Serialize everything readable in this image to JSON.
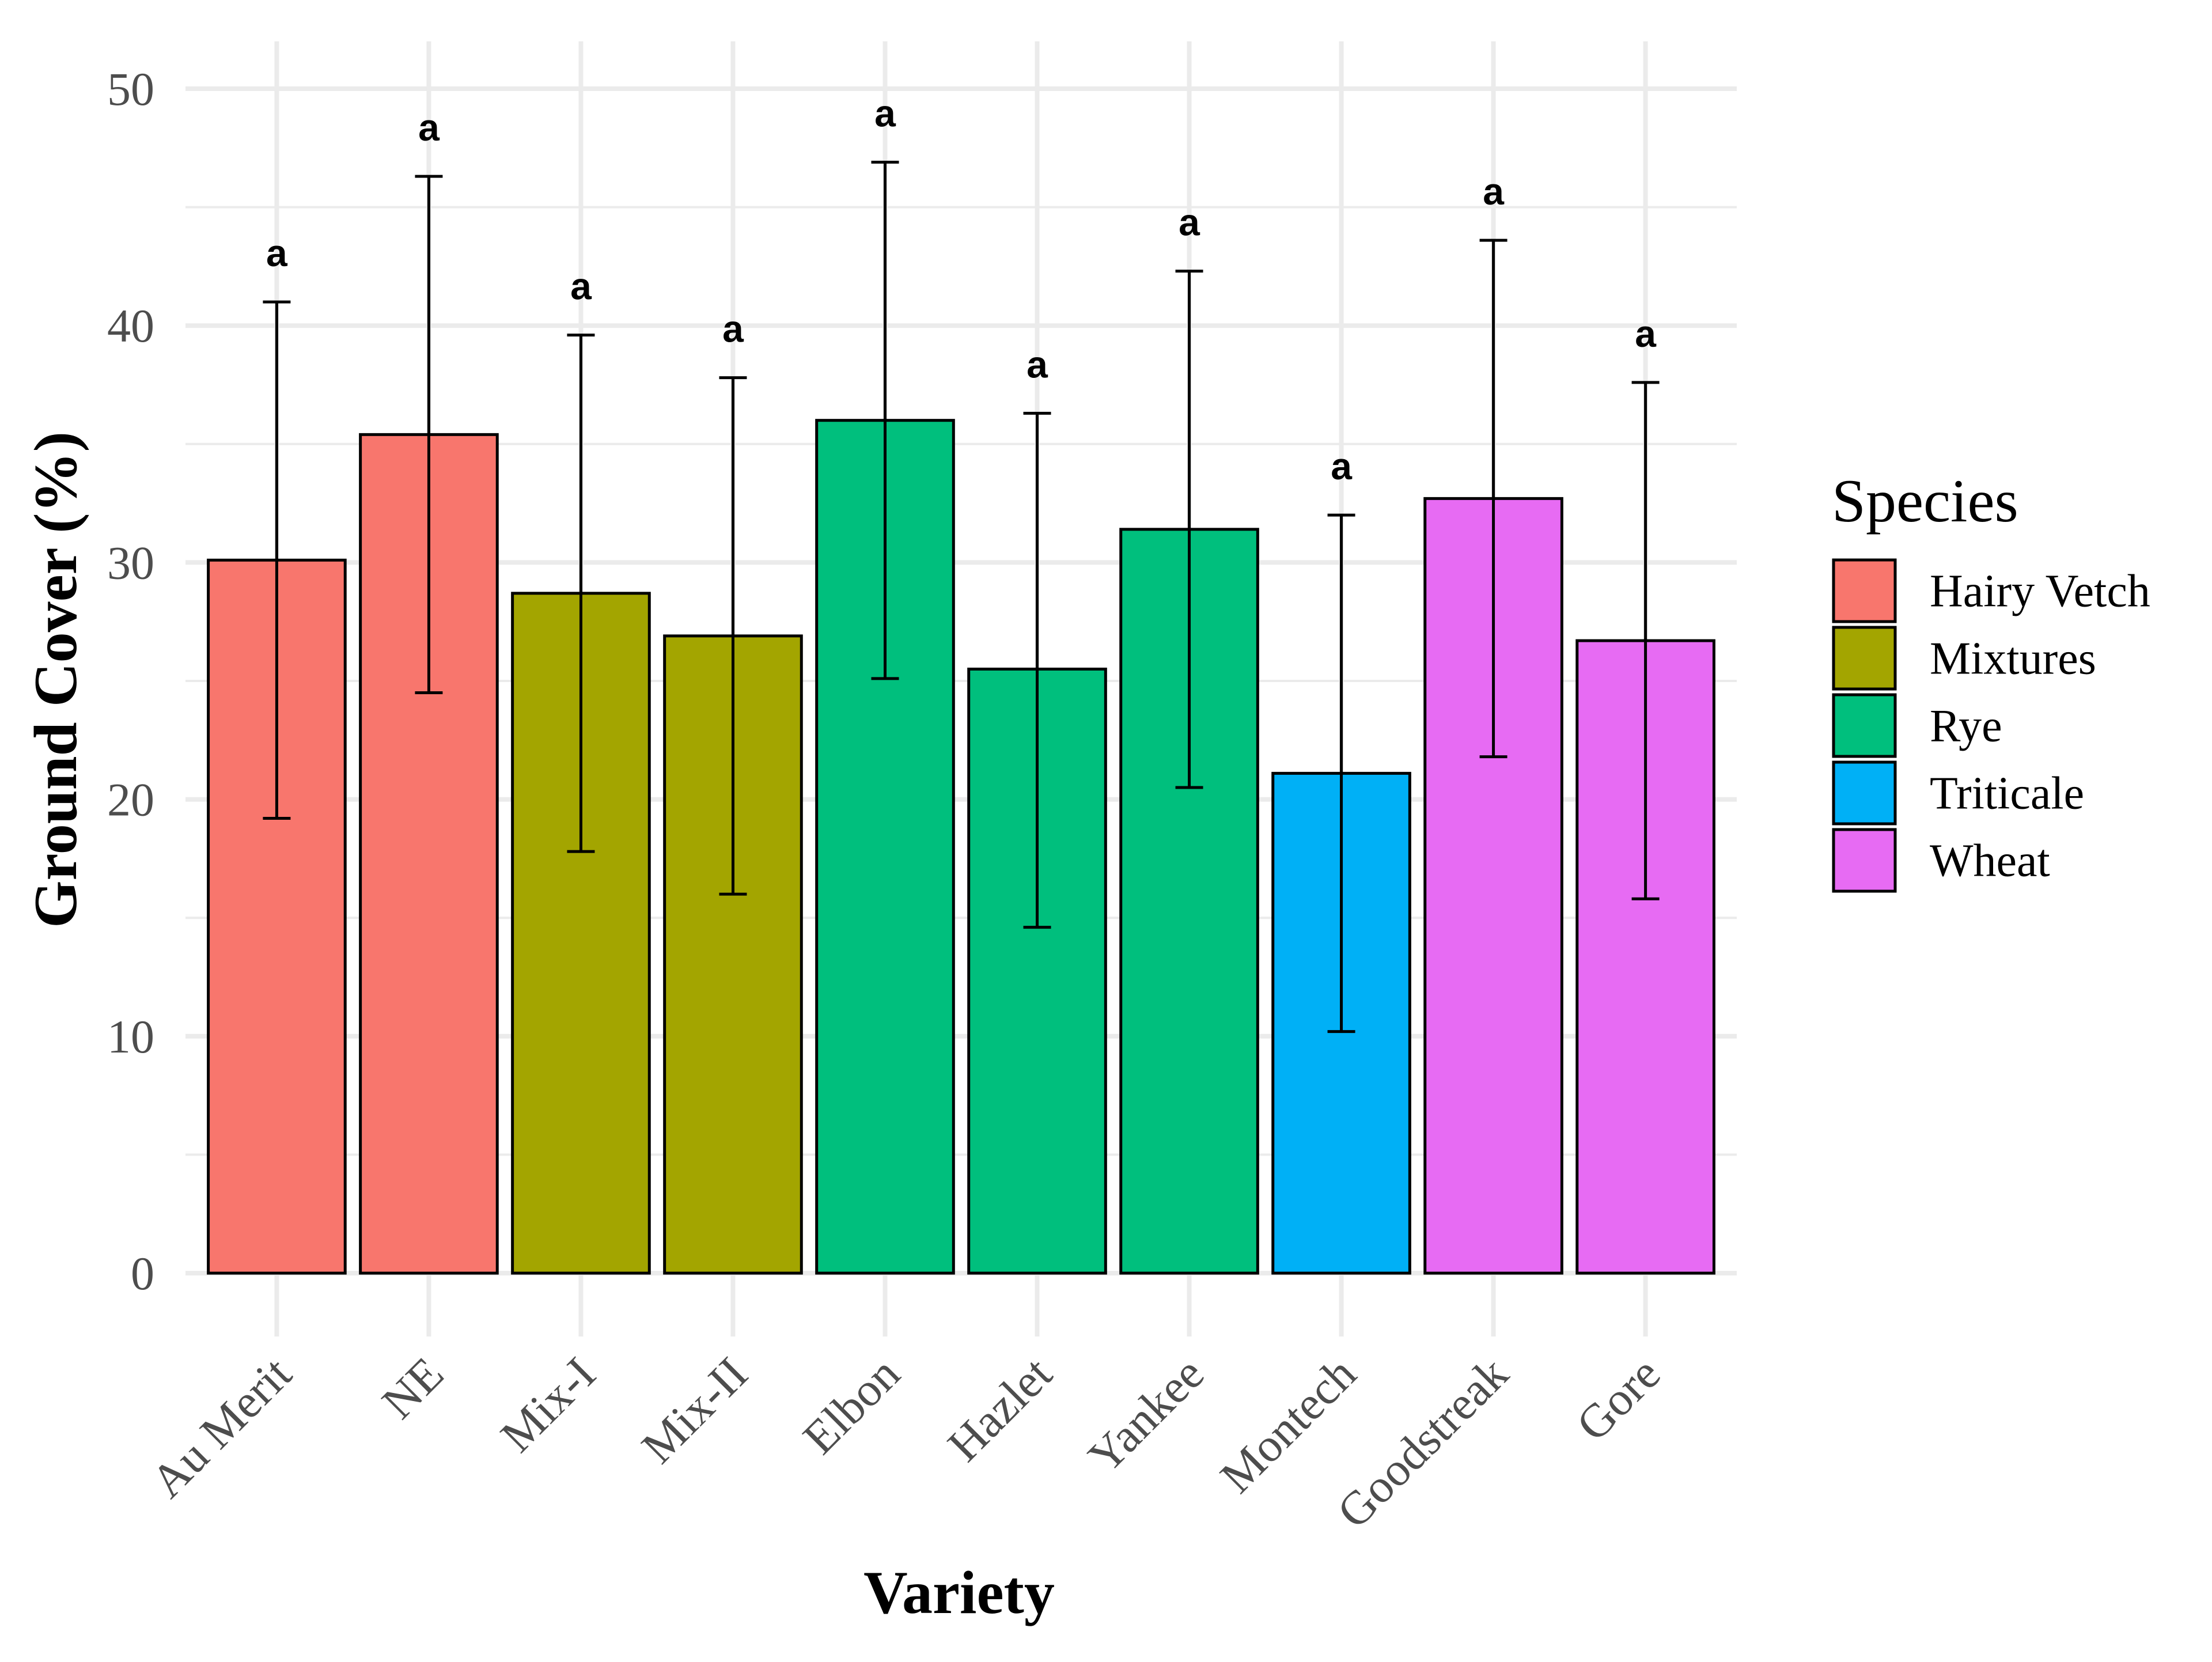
{
  "chart_data": {
    "type": "bar",
    "title": "",
    "xlabel": "Variety",
    "ylabel": "Ground Cover (%)",
    "ylim": [
      0,
      52
    ],
    "yticks": [
      0,
      10,
      20,
      30,
      40,
      50
    ],
    "yticks_labels": [
      "0",
      "10",
      "20",
      "30",
      "40",
      "50"
    ],
    "grid": true,
    "categories": [
      "Au Merit",
      "NE",
      "Mix-I",
      "Mix-II",
      "Elbon",
      "Hazlet",
      "Yankee",
      "Montech",
      "Goodstreak",
      "Gore"
    ],
    "values": [
      30.1,
      35.4,
      28.7,
      26.9,
      36.0,
      25.5,
      31.4,
      21.1,
      32.7,
      26.7
    ],
    "error_low": [
      19.2,
      24.5,
      17.8,
      16.0,
      25.1,
      14.6,
      20.5,
      10.2,
      21.8,
      15.8
    ],
    "error_high": [
      41.0,
      46.3,
      39.6,
      37.8,
      46.9,
      36.3,
      42.3,
      32.0,
      43.6,
      37.6
    ],
    "species": [
      "Hairy Vetch",
      "Hairy Vetch",
      "Mixtures",
      "Mixtures",
      "Rye",
      "Rye",
      "Rye",
      "Triticale",
      "Wheat",
      "Wheat"
    ],
    "significance_letters": [
      "a",
      "a",
      "a",
      "a",
      "a",
      "a",
      "a",
      "a",
      "a",
      "a"
    ],
    "legend": {
      "title": "Species",
      "position": "right",
      "entries": [
        {
          "name": "Hairy Vetch",
          "color": "#F8766D"
        },
        {
          "name": "Mixtures",
          "color": "#A3A500"
        },
        {
          "name": "Rye",
          "color": "#00BF7D"
        },
        {
          "name": "Triticale",
          "color": "#00B0F6"
        },
        {
          "name": "Wheat",
          "color": "#E76BF3"
        }
      ]
    }
  }
}
